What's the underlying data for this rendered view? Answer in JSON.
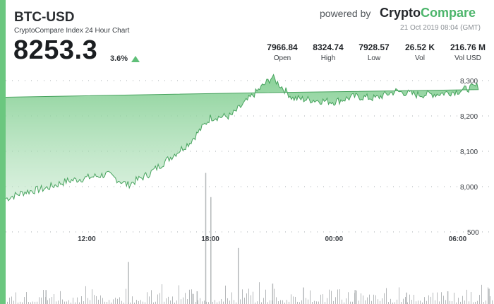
{
  "header": {
    "pair": "BTC-USD",
    "subtitle": "CryptoCompare Index 24 Hour Chart",
    "price": "8253.3",
    "change": "3.6%",
    "powered_by": "powered by",
    "brand_part1": "Crypto",
    "brand_part2": "Compare",
    "timestamp": "21 Oct 2019 08:04 (GMT)"
  },
  "stats": [
    {
      "value": "7966.84",
      "label": "Open"
    },
    {
      "value": "8324.74",
      "label": "High"
    },
    {
      "value": "7928.57",
      "label": "Low"
    },
    {
      "value": "26.52 K",
      "label": "Vol"
    },
    {
      "value": "216.76 M",
      "label": "Vol USD"
    }
  ],
  "colors": {
    "accent": "#6bc77f",
    "line": "#47a35e",
    "area_top": "#7ccc8c",
    "volume": "#b5b8ba",
    "brand_green": "#4cb56b"
  },
  "chart_data": {
    "type": "area",
    "x_tick_labels": [
      "12:00",
      "18:00",
      "00:00",
      "06:00"
    ],
    "y_tick_labels": [
      "8,300",
      "8,200",
      "8,100",
      "8,000"
    ],
    "volume_tick_label": "500",
    "ylim": [
      7950,
      8330
    ],
    "price_series": {
      "x": [
        "08:04",
        "09:00",
        "10:00",
        "11:00",
        "12:00",
        "13:00",
        "14:00",
        "15:00",
        "16:00",
        "17:00",
        "18:00",
        "19:00",
        "20:00",
        "21:00",
        "22:00",
        "23:00",
        "00:00",
        "01:00",
        "02:00",
        "03:00",
        "04:00",
        "05:00",
        "06:00",
        "07:00",
        "08:04"
      ],
      "values": [
        7966,
        7985,
        7995,
        8015,
        8025,
        8035,
        8005,
        8035,
        8080,
        8125,
        8195,
        8200,
        8255,
        8310,
        8250,
        8245,
        8240,
        8255,
        8250,
        8270,
        8260,
        8262,
        8270,
        8285,
        8253
      ]
    },
    "volume_series": {
      "x": [
        "10:00",
        "14:00",
        "17:05",
        "17:20",
        "17:45",
        "18:00",
        "19:20",
        "21:00",
        "22:30",
        "01:00",
        "03:30",
        "05:30",
        "07:30"
      ],
      "values": [
        110,
        330,
        80,
        100,
        1030,
        840,
        440,
        160,
        130,
        110,
        90,
        100,
        120
      ]
    },
    "grid": "dotted-horizontal"
  }
}
